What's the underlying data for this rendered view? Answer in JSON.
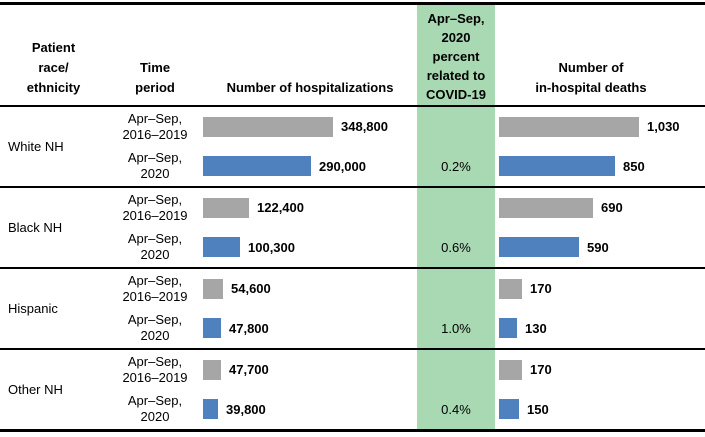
{
  "chart_data": {
    "type": "bar",
    "orientation": "horizontal",
    "columns": {
      "race": "Patient\nrace/\nethnicity",
      "period": "Time\nperiod",
      "hospitalizations": "Number of hospitalizations",
      "covid_percent": "Apr–Sep,\n2020\npercent\nrelated to\nCOVID-19",
      "deaths": "Number of\nin-hospital deaths"
    },
    "legend": [
      "Apr–Sep, 2016–2019",
      "Apr–Sep, 2020"
    ],
    "colors": {
      "baseline_bar": "#a6a6a6",
      "current_bar": "#4e81bd",
      "covid_band": "#a9d9b2",
      "rule": "#000000"
    },
    "groups": [
      {
        "race": "White NH",
        "rows": [
          {
            "period": "Apr–Sep,\n2016–2019",
            "hospitalizations": 348800,
            "hospitalizations_label": "348,800",
            "covid_percent": "",
            "deaths": 1030,
            "deaths_label": "1,030"
          },
          {
            "period": "Apr–Sep,\n2020",
            "hospitalizations": 290000,
            "hospitalizations_label": "290,000",
            "covid_percent": "0.2%",
            "deaths": 850,
            "deaths_label": "850"
          }
        ]
      },
      {
        "race": "Black NH",
        "rows": [
          {
            "period": "Apr–Sep,\n2016–2019",
            "hospitalizations": 122400,
            "hospitalizations_label": "122,400",
            "covid_percent": "",
            "deaths": 690,
            "deaths_label": "690"
          },
          {
            "period": "Apr–Sep,\n2020",
            "hospitalizations": 100300,
            "hospitalizations_label": "100,300",
            "covid_percent": "0.6%",
            "deaths": 590,
            "deaths_label": "590"
          }
        ]
      },
      {
        "race": "Hispanic",
        "rows": [
          {
            "period": "Apr–Sep,\n2016–2019",
            "hospitalizations": 54600,
            "hospitalizations_label": "54,600",
            "covid_percent": "",
            "deaths": 170,
            "deaths_label": "170"
          },
          {
            "period": "Apr–Sep,\n2020",
            "hospitalizations": 47800,
            "hospitalizations_label": "47,800",
            "covid_percent": "1.0%",
            "deaths": 130,
            "deaths_label": "130"
          }
        ]
      },
      {
        "race": "Other NH",
        "rows": [
          {
            "period": "Apr–Sep,\n2016–2019",
            "hospitalizations": 47700,
            "hospitalizations_label": "47,700",
            "covid_percent": "",
            "deaths": 170,
            "deaths_label": "170"
          },
          {
            "period": "Apr–Sep,\n2020",
            "hospitalizations": 39800,
            "hospitalizations_label": "39,800",
            "covid_percent": "0.4%",
            "deaths": 150,
            "deaths_label": "150"
          }
        ]
      }
    ]
  }
}
